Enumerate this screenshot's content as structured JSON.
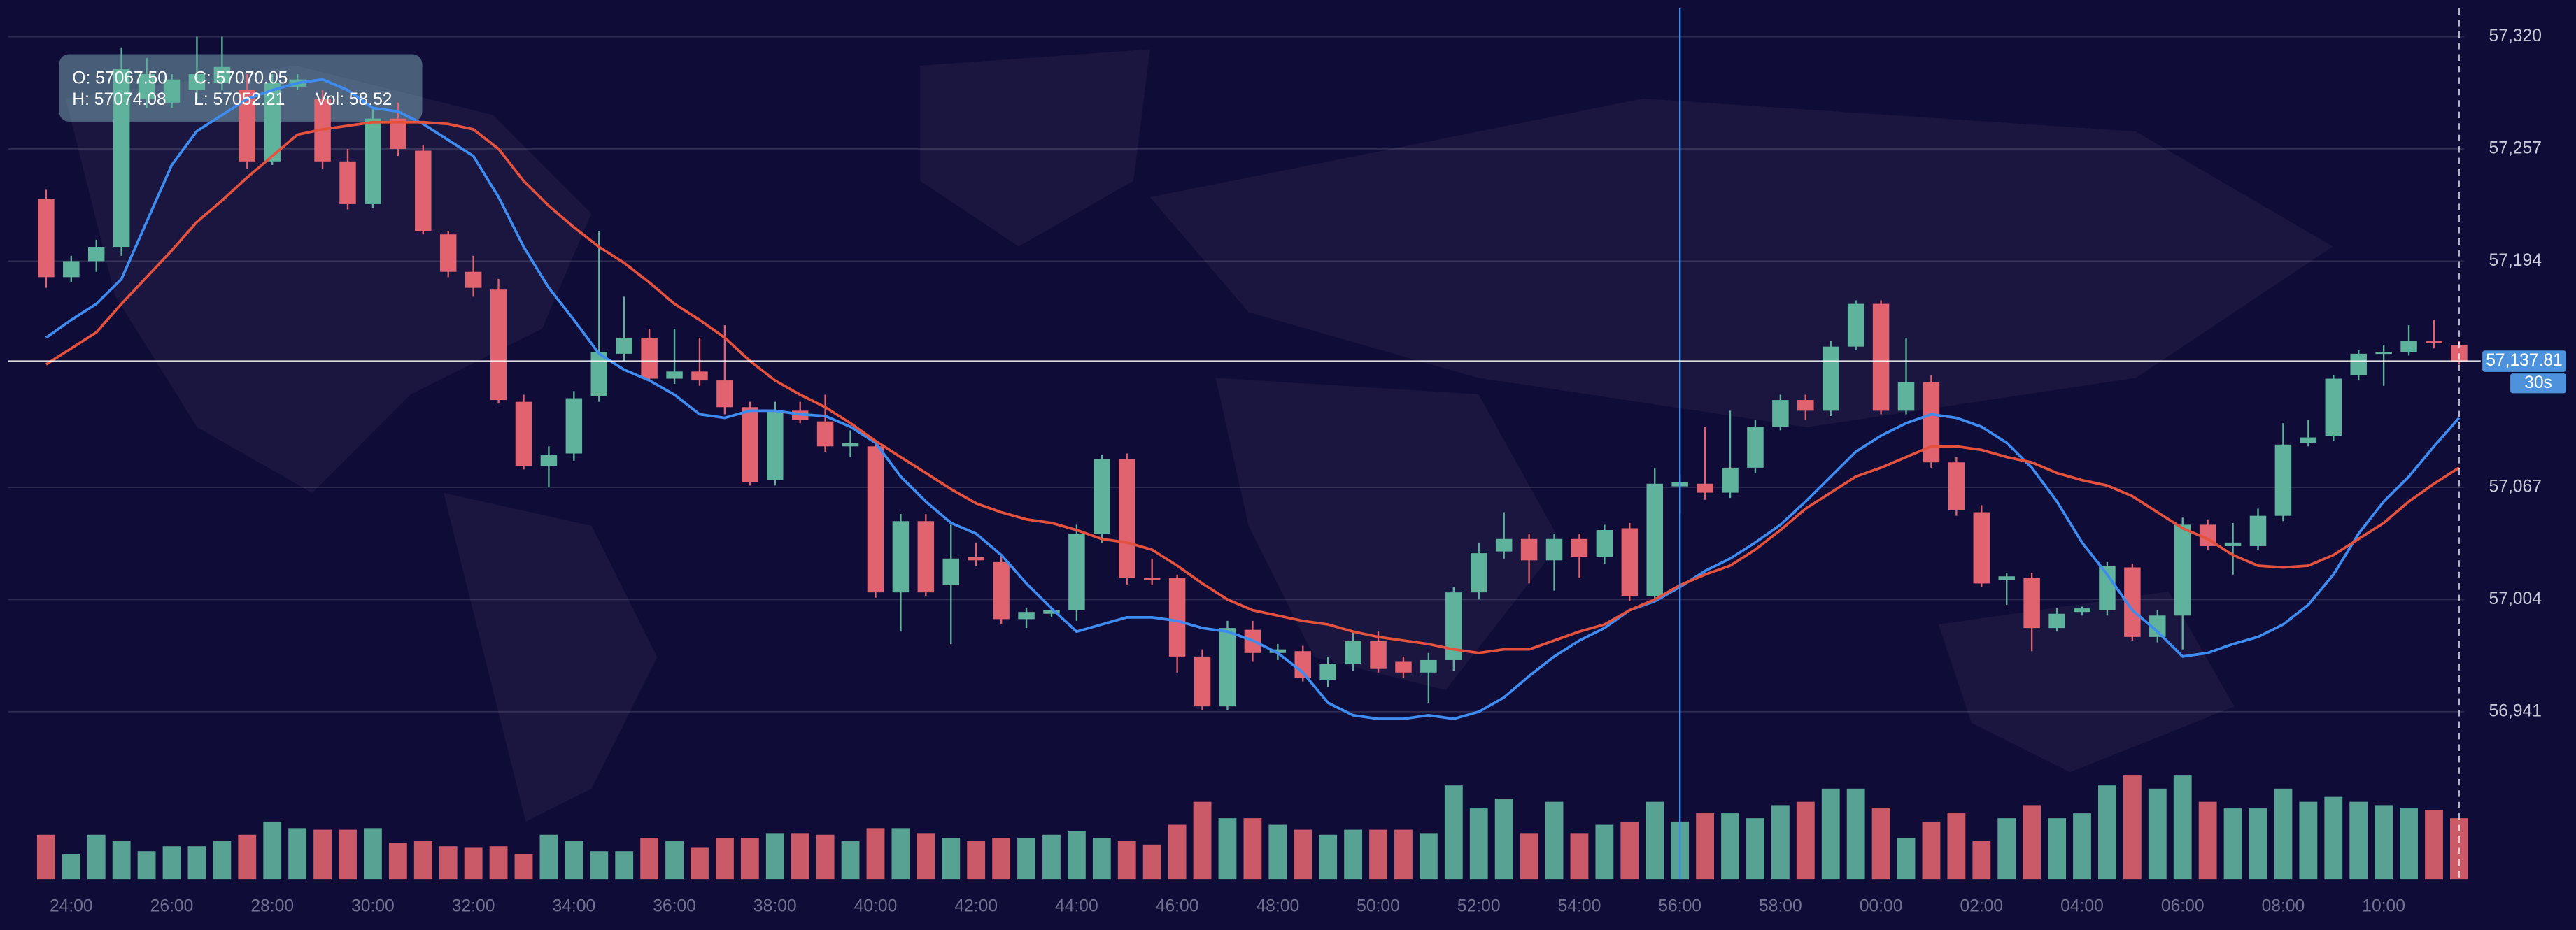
{
  "chart_data": {
    "type": "candlestick",
    "categories": [
      null,
      "24:00",
      null,
      null,
      null,
      "26:00",
      null,
      null,
      null,
      "28:00",
      null,
      null,
      null,
      "30:00",
      null,
      null,
      null,
      "32:00",
      null,
      null,
      null,
      "34:00",
      null,
      null,
      null,
      "36:00",
      null,
      null,
      null,
      "38:00",
      null,
      null,
      null,
      "40:00",
      null,
      null,
      null,
      "42:00",
      null,
      null,
      null,
      "44:00",
      null,
      null,
      null,
      "46:00",
      null,
      null,
      null,
      "48:00",
      null,
      null,
      null,
      "50:00",
      null,
      null,
      null,
      "52:00",
      null,
      null,
      null,
      "54:00",
      null,
      null,
      null,
      "56:00",
      null,
      null,
      null,
      "58:00",
      null,
      null,
      null,
      "00:00",
      null,
      null,
      null,
      "02:00",
      null,
      null,
      null,
      "04:00",
      null,
      null,
      null,
      "06:00",
      null,
      null,
      null,
      "08:00",
      null,
      null,
      null,
      "10:00",
      null,
      null,
      null
    ],
    "open": [
      57229,
      57185,
      57194,
      57202,
      57285,
      57283,
      57290,
      57294,
      57290,
      57250,
      57292,
      57285,
      57250,
      57226,
      57274,
      57256,
      57209,
      57188,
      57178,
      57115,
      57079,
      57086,
      57118,
      57142,
      57151,
      57128,
      57132,
      57127,
      57112,
      57071,
      57110,
      57104,
      57090,
      57090,
      57008,
      57048,
      57012,
      57028,
      57025,
      56993,
      56996,
      56998,
      57041,
      57083,
      57016,
      57016,
      56972,
      56944,
      56987,
      56974,
      56975,
      56959,
      56968,
      56981,
      56969,
      56963,
      56970,
      57008,
      57031,
      57038,
      57026,
      57038,
      57028,
      57044,
      57006,
      57067.5,
      57069,
      57064,
      57078,
      57101,
      57116,
      57110,
      57146,
      57170,
      57110,
      57126,
      57081,
      57053,
      57015,
      57016,
      56988,
      56997,
      56998,
      57022,
      56983,
      56995,
      57046,
      57034,
      57034,
      57051,
      57092,
      57096,
      57130,
      57142,
      57143,
      57149,
      57147
    ],
    "high": [
      57234,
      57197,
      57206,
      57314,
      57308,
      57299,
      57320,
      57320,
      57299,
      57299,
      57299,
      57290,
      57257,
      57280,
      57283,
      57259,
      57211,
      57197,
      57184,
      57119,
      57090,
      57121,
      57211,
      57174,
      57156,
      57156,
      57151,
      57158,
      57115,
      57115,
      57115,
      57119,
      57099,
      57093,
      57052,
      57052,
      57046,
      57036,
      57029,
      56999,
      56999,
      57046,
      57085,
      57086,
      57027,
      57018,
      56976,
      56992,
      56992,
      56979,
      56978,
      56972,
      56986,
      56986,
      56972,
      56974,
      57011,
      57036,
      57053,
      57041,
      57041,
      57041,
      57046,
      57047,
      57078,
      57074.08,
      57101,
      57110,
      57105,
      57119,
      57119,
      57149,
      57172,
      57172,
      57151,
      57130,
      57084,
      57057,
      57019,
      57019,
      56999,
      57000,
      57025,
      57024,
      56998,
      57050,
      57049,
      57047,
      57055,
      57103,
      57105,
      57130,
      57144,
      57147,
      57158,
      57161,
      57149
    ],
    "low": [
      57179,
      57182,
      57188,
      57197,
      57280,
      57280,
      57285,
      57290,
      57246,
      57248,
      57290,
      57246,
      57223,
      57224,
      57253,
      57209,
      57185,
      57174,
      57114,
      57077,
      57067,
      57082,
      57115,
      57138,
      57126,
      57125,
      57124,
      57108,
      57068,
      57068,
      57103,
      57087,
      57084,
      57005,
      56986,
      57006,
      56979,
      57023,
      56990,
      56988,
      56994,
      56992,
      57036,
      57012,
      57012,
      56963,
      56942,
      56942,
      56969,
      56970,
      56958,
      56955,
      56964,
      56963,
      56960,
      56946,
      56964,
      57004,
      57027,
      57013,
      57009,
      57016,
      57024,
      57003,
      57003,
      57052.21,
      57060,
      57061,
      57075,
      57099,
      57105,
      57107,
      57144,
      57108,
      57108,
      57078,
      57051,
      57011,
      57001,
      56975,
      56986,
      56995,
      56995,
      56981,
      56980,
      56976,
      57032,
      57018,
      57032,
      57048,
      57090,
      57093,
      57127,
      57124,
      57141,
      57145,
      57136
    ],
    "close": [
      57185,
      57194,
      57202,
      57302,
      57299,
      57296,
      57299,
      57303,
      57250,
      57294,
      57296,
      57250,
      57226,
      57274,
      57257,
      57211,
      57188,
      57179,
      57116,
      57079,
      57085,
      57117,
      57143,
      57151,
      57128,
      57132,
      57127,
      57112,
      57070,
      57110,
      57105,
      57090,
      57092,
      57008,
      57048,
      57008,
      57027,
      57026,
      56993,
      56997,
      56998,
      57041,
      57083,
      57016,
      57015,
      56972,
      56944,
      56988,
      56974,
      56976,
      56960,
      56968,
      56981,
      56965,
      56963,
      56970,
      57008,
      57030,
      57038,
      57026,
      57038,
      57028,
      57043,
      57006,
      57069,
      57070.05,
      57064,
      57078,
      57101,
      57116,
      57110,
      57146,
      57170,
      57110,
      57126,
      57081,
      57054,
      57013,
      57017,
      56988,
      56996,
      56999,
      57023,
      56983,
      56995,
      57046,
      57034,
      57036,
      57051,
      57091,
      57095,
      57128,
      57142,
      57143,
      57149,
      57148,
      57137.81
    ],
    "volume": [
      45.1,
      25.1,
      45.1,
      38.5,
      28.4,
      33.4,
      33.4,
      38.5,
      45.1,
      58.5,
      51.8,
      50.2,
      50.2,
      51.8,
      36.8,
      38.5,
      33.4,
      31.8,
      33.4,
      25.1,
      45.1,
      38.5,
      28.4,
      28.4,
      41.8,
      38.5,
      31.8,
      41.8,
      41.8,
      46.8,
      46.8,
      45.1,
      38.5,
      51.8,
      51.8,
      46.8,
      41.8,
      38.5,
      41.8,
      41.8,
      45.1,
      48.5,
      41.8,
      38.5,
      35.1,
      55.2,
      78.6,
      61.9,
      61.9,
      55.2,
      50.2,
      45.1,
      50.2,
      50.2,
      50.2,
      46.8,
      95.3,
      71.9,
      81.9,
      46.8,
      78.6,
      46.8,
      55.2,
      58.5,
      78.6,
      58.52,
      66.9,
      66.9,
      61.9,
      75.2,
      78.6,
      92,
      92,
      71.9,
      41.8,
      58.5,
      66.9,
      38.5,
      61.9,
      75.2,
      61.9,
      66.9,
      95.3,
      105.3,
      92,
      105.3,
      78.6,
      71.9,
      71.9,
      92,
      78.6,
      83.6,
      78.6,
      75.2,
      71.9,
      70.2,
      61.9
    ],
    "up_color": "#5fb39c",
    "down_color": "#e0636f",
    "lines": [
      {
        "color": "#3f8cf0",
        "values": [
          57151,
          57161,
          57170,
          57184,
          57216,
          57248,
          57267,
          57276,
          57285,
          57290,
          57294,
          57296,
          57290,
          57280,
          57278,
          57271,
          57262,
          57253,
          57230,
          57202,
          57179,
          57161,
          57142,
          57133,
          57127,
          57119,
          57108,
          57106,
          57110,
          57110,
          57108,
          57107,
          57101,
          57092,
          57073,
          57059,
          57047,
          57041,
          57029,
          57013,
          56999,
          56986,
          56990,
          56994,
          56994,
          56992,
          56988,
          56986,
          56981,
          56974,
          56963,
          56946,
          56939,
          56937,
          56937,
          56939,
          56937,
          56941,
          56949,
          56961,
          56972,
          56981,
          56988,
          56998,
          57003,
          57011,
          57020,
          57027,
          57036,
          57046,
          57059,
          57073,
          57087,
          57096,
          57103,
          57108,
          57106,
          57101,
          57092,
          57078,
          57059,
          57036,
          57018,
          56998,
          56986,
          56972,
          56974,
          56979,
          56983,
          56990,
          57001,
          57018,
          57041,
          57059,
          57073,
          57090,
          57106
        ]
      },
      {
        "color": "#e4513c",
        "values": [
          57136,
          57145,
          57154,
          57170,
          57185,
          57200,
          57216,
          57228,
          57241,
          57253,
          57265,
          57268,
          57270,
          57272,
          57272,
          57272,
          57271,
          57268,
          57257,
          57239,
          57225,
          57213,
          57202,
          57193,
          57182,
          57170,
          57161,
          57151,
          57138,
          57127,
          57119,
          57112,
          57103,
          57093,
          57084,
          57075,
          57066,
          57058,
          57053,
          57049,
          57047,
          57043,
          57038,
          57036,
          57032,
          57023,
          57013,
          57004,
          56998,
          56995,
          56992,
          56990,
          56986,
          56983,
          56981,
          56979,
          56976,
          56974,
          56976,
          56976,
          56981,
          56986,
          56990,
          56998,
          57004,
          57012,
          57018,
          57023,
          57032,
          57043,
          57055,
          57064,
          57073,
          57078,
          57084,
          57090,
          57090,
          57088,
          57084,
          57081,
          57075,
          57071,
          57068,
          57062,
          57053,
          57044,
          57038,
          57029,
          57023,
          57022,
          57023,
          57029,
          57038,
          57047,
          57059,
          57069,
          57078
        ]
      }
    ],
    "ylim": [
      56907,
      57336
    ],
    "yticks": [
      {
        "value": 57320,
        "label": "57,320"
      },
      {
        "value": 57257,
        "label": "57,257"
      },
      {
        "value": 57194,
        "label": "57,194"
      },
      {
        "value": 57067,
        "label": "57,067"
      },
      {
        "value": 57004,
        "label": "57,004"
      },
      {
        "value": 56941,
        "label": "56,941"
      }
    ],
    "grid": true,
    "last_price": {
      "value": 57137.81,
      "label": "57,137.81"
    },
    "countdown": "30s",
    "crosshair_index": 65,
    "tooltip": [
      "O: 57067.50",
      "C: 57070.05",
      "H: 57074.08",
      "L: 57052.21",
      "Vol: 58.52"
    ]
  }
}
